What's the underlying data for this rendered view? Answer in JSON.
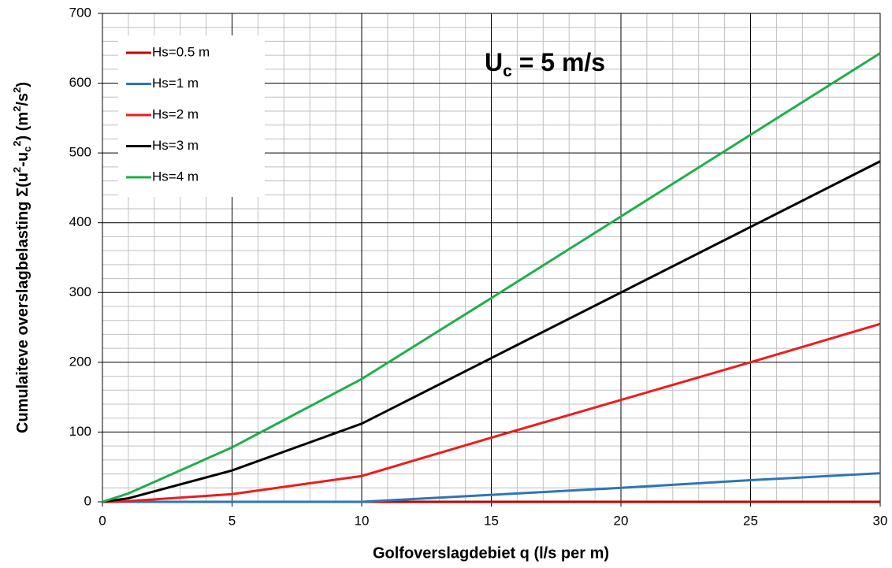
{
  "chart_data": {
    "type": "line",
    "annotation": [
      "U",
      "c",
      " = 5 m/s"
    ],
    "xlabel": "Golfoverslagdebiet q (l/s per m)",
    "ylabel": [
      "Cumulaiteve overslagbelasting Σ(u",
      "2",
      "-u",
      "c",
      "2",
      ") (m",
      "2",
      "/s",
      "2",
      ")"
    ],
    "x": [
      0,
      1,
      5,
      10,
      15,
      20,
      25,
      30
    ],
    "series": [
      {
        "name": "Hs=0.5 m",
        "color": "#c00000",
        "values": [
          0,
          0,
          0,
          0,
          0,
          0,
          0,
          0
        ]
      },
      {
        "name": "Hs=1 m",
        "color": "#2e75b6",
        "values": [
          0,
          0,
          0,
          0,
          10,
          20,
          31,
          41
        ]
      },
      {
        "name": "Hs=2 m",
        "color": "#ee1c1c",
        "values": [
          0,
          1,
          11,
          37,
          92,
          146,
          200,
          255
        ]
      },
      {
        "name": "Hs=3 m",
        "color": "#000000",
        "values": [
          0,
          5,
          45,
          112,
          206,
          300,
          394,
          488
        ]
      },
      {
        "name": "Hs=4 m",
        "color": "#1fae4b",
        "values": [
          0,
          12,
          78,
          176,
          292,
          409,
          526,
          643
        ]
      }
    ],
    "xlim": [
      0,
      30
    ],
    "xticks": [
      0,
      5,
      10,
      15,
      20,
      25,
      30
    ],
    "ylim": [
      0,
      700
    ],
    "yticks": [
      0,
      100,
      200,
      300,
      400,
      500,
      600,
      700
    ],
    "grid": true,
    "legend": "upper left"
  }
}
